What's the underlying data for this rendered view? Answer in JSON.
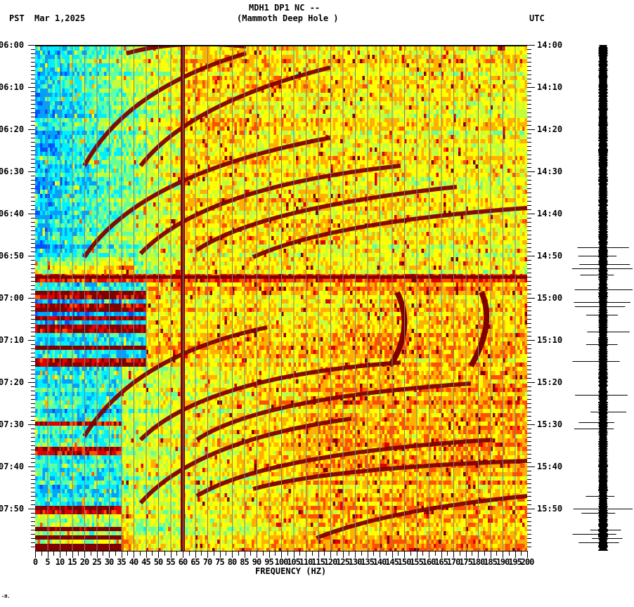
{
  "header": {
    "station_line": "MDH1 DP1 NC --",
    "station_name": "(Mammoth Deep Hole )",
    "left_timezone": "PST",
    "date": "Mar 1,2025",
    "right_timezone": "UTC"
  },
  "footer_mark": "-H.",
  "colors": {
    "colormap": [
      "#0000a0",
      "#0050ff",
      "#00a0ff",
      "#00f0ff",
      "#60ffa0",
      "#c0ff40",
      "#ffff00",
      "#ffb000",
      "#ff5000",
      "#e00000",
      "#800000"
    ],
    "gridline": "#808080",
    "waveform": "#000000",
    "background": "#ffffff"
  },
  "chart_data": {
    "type": "heatmap",
    "title": "MDH1 DP1 NC -- (Mammoth Deep Hole )",
    "subtitle": "Mar 1,2025",
    "xlabel": "FREQUENCY (HZ)",
    "ylabel_left": "PST",
    "ylabel_right": "UTC",
    "xlim": [
      0,
      200
    ],
    "x_ticks": [
      "0",
      "5",
      "10",
      "15",
      "20",
      "25",
      "30",
      "35",
      "40",
      "45",
      "50",
      "55",
      "60",
      "65",
      "70",
      "75",
      "80",
      "85",
      "90",
      "95",
      "100",
      "105",
      "110",
      "115",
      "120",
      "125",
      "130",
      "135",
      "140",
      "145",
      "150",
      "155",
      "160",
      "165",
      "170",
      "175",
      "180",
      "185",
      "190",
      "195",
      "200"
    ],
    "y_ticks_left": [
      "06:00",
      "06:10",
      "06:20",
      "06:30",
      "06:40",
      "06:50",
      "07:00",
      "07:10",
      "07:20",
      "07:30",
      "07:40",
      "07:50"
    ],
    "y_ticks_right": [
      "14:00",
      "14:10",
      "14:20",
      "14:30",
      "14:40",
      "14:50",
      "15:00",
      "15:10",
      "15:20",
      "15:30",
      "15:40",
      "15:50"
    ],
    "y_range_minutes": [
      0,
      120
    ],
    "minor_tick_interval_minutes": 1,
    "vertical_grid_interval_hz": 5,
    "features": [
      {
        "label": "persistent 60 Hz line",
        "freq_hz": 60,
        "start_min": 0,
        "end_min": 120
      },
      {
        "label": "seismic event broadband band",
        "start_min": 54,
        "end_min": 55.5,
        "freq_range_hz": [
          0,
          200
        ]
      },
      {
        "label": "strong low-frequency bursts",
        "time_range_min": [
          57,
          75
        ],
        "freq_range_hz": [
          0,
          40
        ]
      },
      {
        "label": "curved harmonic sweeps (upper)",
        "time_range_min": [
          0,
          50
        ],
        "freq_range_hz": [
          20,
          150
        ]
      },
      {
        "label": "curved harmonic sweeps (lower)",
        "time_range_min": [
          75,
          120
        ],
        "freq_range_hz": [
          20,
          150
        ]
      },
      {
        "label": "S-shaped tracks",
        "freq_hz": [
          140,
          180
        ],
        "time_range_min": [
          58,
          76
        ]
      }
    ],
    "waveform": {
      "label": "seismogram trace",
      "large_spikes_minutes": [
        48,
        50,
        52,
        53,
        54.5,
        58,
        61,
        62,
        64,
        68,
        71,
        75,
        83,
        87,
        89.5,
        91,
        107,
        110,
        111,
        115,
        116,
        117,
        118
      ]
    }
  }
}
